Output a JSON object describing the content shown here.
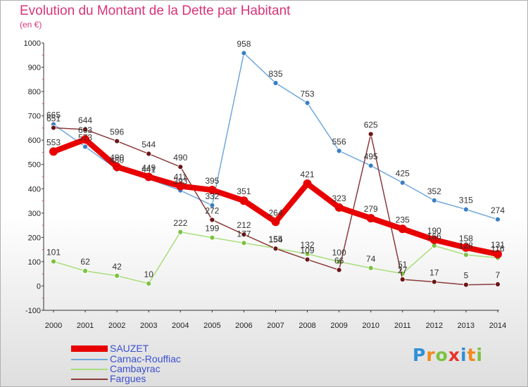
{
  "header": {
    "title": "Evolution du Montant de la Dette par Habitant",
    "unit": "(en €)"
  },
  "brand": {
    "letters": [
      "P",
      "r",
      "o",
      "x",
      "i",
      "t",
      "i"
    ],
    "colors": [
      "#2f8fd8",
      "#f08a1c",
      "#7cc242",
      "#e8332a",
      "#2f8fd8",
      "#f08a1c",
      "#7cc242"
    ]
  },
  "chart_data": {
    "type": "line",
    "x": [
      2000,
      2001,
      2002,
      2003,
      2004,
      2005,
      2006,
      2007,
      2008,
      2009,
      2010,
      2011,
      2012,
      2013,
      2014
    ],
    "ylim": [
      -100,
      1000
    ],
    "yticks": [
      -100,
      0,
      100,
      200,
      300,
      400,
      500,
      600,
      700,
      800,
      900,
      1000
    ],
    "grid": false,
    "legend_position": "bottom-left",
    "series": [
      {
        "name": "SAUZET",
        "color": "#e80000",
        "width": 8,
        "marker": "#e80000",
        "r": 6,
        "values": [
          553,
          603,
          490,
          449,
          411,
          395,
          351,
          264,
          421,
          323,
          279,
          235,
          190,
          158,
          131
        ],
        "labels": [
          "553",
          "603",
          "490",
          "449",
          "411",
          "395",
          "351",
          "264",
          "421",
          "323",
          "279",
          "235",
          "190",
          "158",
          "131"
        ]
      },
      {
        "name": "Carnac-Rouffiac",
        "color": "#6fa8dc",
        "width": 1.5,
        "marker": "#3a7fc4",
        "r": 3.5,
        "values": [
          665,
          573,
          480,
          441,
          393,
          332,
          958,
          835,
          753,
          556,
          495,
          425,
          352,
          315,
          274
        ],
        "labels": [
          "665",
          "573",
          "480",
          "441",
          "393",
          "332",
          "958",
          "835",
          "753",
          "556",
          "495",
          "425",
          "352",
          "315",
          "274"
        ]
      },
      {
        "name": "Cambayrac",
        "color": "#a8de7a",
        "width": 1.5,
        "marker": "#7cc242",
        "r": 3.5,
        "values": [
          101,
          62,
          42,
          10,
          222,
          199,
          177,
          155,
          132,
          100,
          74,
          51,
          166,
          128,
          116
        ],
        "labels": [
          "101",
          "62",
          "42",
          "10",
          "222",
          "199",
          "177",
          "155",
          "132",
          "100",
          "74",
          "51",
          "166",
          "128",
          "116"
        ]
      },
      {
        "name": "Fargues",
        "color": "#8c3a3a",
        "width": 1.5,
        "marker": "#6b1616",
        "r": 3.5,
        "values": [
          651,
          644,
          596,
          544,
          490,
          272,
          212,
          154,
          109,
          66,
          625,
          27,
          17,
          5,
          7
        ],
        "labels": [
          "651",
          "644",
          "596",
          "544",
          "490",
          "272",
          "212",
          "154",
          "109",
          "66",
          "625",
          "27",
          "17",
          "5",
          "7"
        ]
      }
    ]
  }
}
